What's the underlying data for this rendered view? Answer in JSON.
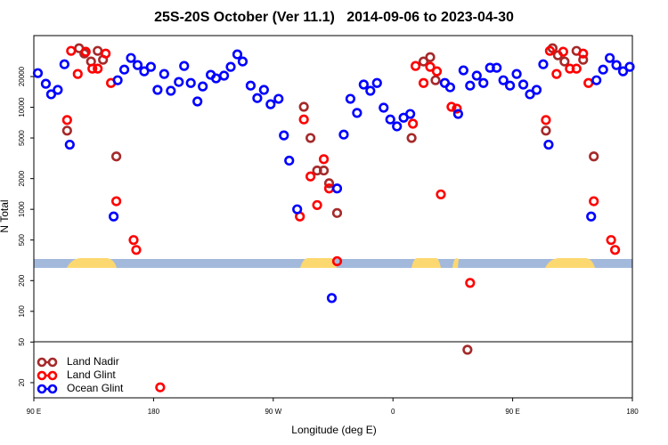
{
  "chart_data": {
    "type": "scatter",
    "title": "25S-20S October (Ver 11.1)   2014-09-06 to 2023-04-30",
    "xlabel": "Longitude (deg E)",
    "ylabel": "N Total",
    "xlim": [
      90,
      540
    ],
    "ylim": [
      14.2,
      50400
    ],
    "yscale": "log",
    "xticks": [
      {
        "value": 90,
        "label": "90 E"
      },
      180,
      {
        "value": 270,
        "label": "90 W"
      },
      {
        "value": 360,
        "label": "0"
      },
      {
        "value": 450,
        "label": "90 E"
      },
      {
        "value": 540,
        "label": "180"
      }
    ],
    "yticks": [
      20,
      50,
      100,
      200,
      500,
      1000,
      2000,
      5000,
      10000,
      20000
    ],
    "legend": "lower left",
    "series": [
      {
        "name": "Land Nadir",
        "color": "#a52a2a",
        "x": [
          115,
          124,
          128,
          133,
          138,
          142,
          152,
          293,
          298,
          303,
          308,
          312,
          318,
          374,
          383,
          388,
          392,
          416,
          475,
          480,
          484,
          489,
          498,
          503,
          511
        ],
        "values": [
          5900,
          37900,
          33600,
          28100,
          35700,
          29200,
          3300,
          10100,
          5000,
          2400,
          2400,
          1800,
          920,
          5000,
          28100,
          31000,
          18400,
          42,
          5900,
          37900,
          32300,
          28100,
          35700,
          29200,
          3300
        ]
      },
      {
        "name": "Land Glint",
        "color": "#ff0000",
        "x": [
          115,
          118,
          123,
          129,
          134,
          138,
          144,
          148,
          152,
          165,
          167,
          185,
          290,
          293,
          298,
          303,
          308,
          312,
          318,
          375,
          377,
          383,
          388,
          393,
          396,
          404,
          408,
          418,
          475,
          478,
          483,
          488,
          493,
          498,
          503,
          507,
          511,
          524,
          527
        ],
        "values": [
          7500,
          35700,
          21200,
          35000,
          23900,
          23900,
          33600,
          17300,
          1200,
          500,
          400,
          18,
          850,
          7600,
          2100,
          1100,
          3100,
          1600,
          310,
          6900,
          25400,
          17300,
          24900,
          22500,
          1400,
          10100,
          9700,
          190,
          7500,
          35700,
          21200,
          35000,
          23900,
          23900,
          33600,
          17300,
          1200,
          500,
          400
        ]
      },
      {
        "name": "Ocean Glint",
        "color": "#0000ff",
        "x": [
          93,
          99,
          103,
          108,
          113,
          117,
          150,
          153,
          158,
          163,
          168,
          173,
          178,
          183,
          188,
          193,
          199,
          203,
          208,
          213,
          217,
          223,
          227,
          233,
          238,
          243,
          247,
          253,
          258,
          263,
          268,
          274,
          278,
          282,
          288,
          314,
          318,
          323,
          328,
          333,
          338,
          343,
          348,
          353,
          358,
          363,
          368,
          373,
          399,
          403,
          409,
          413,
          418,
          423,
          428,
          433,
          438,
          443,
          448,
          453,
          458,
          463,
          468,
          473,
          477,
          509,
          513,
          518,
          523,
          528,
          533,
          538
        ],
        "values": [
          21600,
          17000,
          13400,
          14800,
          26400,
          4300,
          850,
          18400,
          23400,
          30400,
          25900,
          22500,
          24900,
          14800,
          21200,
          14500,
          17700,
          25400,
          17300,
          11400,
          16000,
          20800,
          19200,
          20400,
          24900,
          33000,
          28100,
          16300,
          12300,
          14800,
          10700,
          12100,
          5300,
          3000,
          1000,
          135,
          1600,
          5400,
          12100,
          8800,
          16700,
          14500,
          17300,
          9900,
          7600,
          6500,
          7900,
          8600,
          17300,
          15700,
          8600,
          23000,
          16300,
          20400,
          17300,
          24400,
          24400,
          18400,
          16300,
          21200,
          16700,
          13400,
          14800,
          26400,
          4300,
          850,
          18400,
          23400,
          30400,
          25900,
          22500,
          24900
        ]
      }
    ]
  }
}
